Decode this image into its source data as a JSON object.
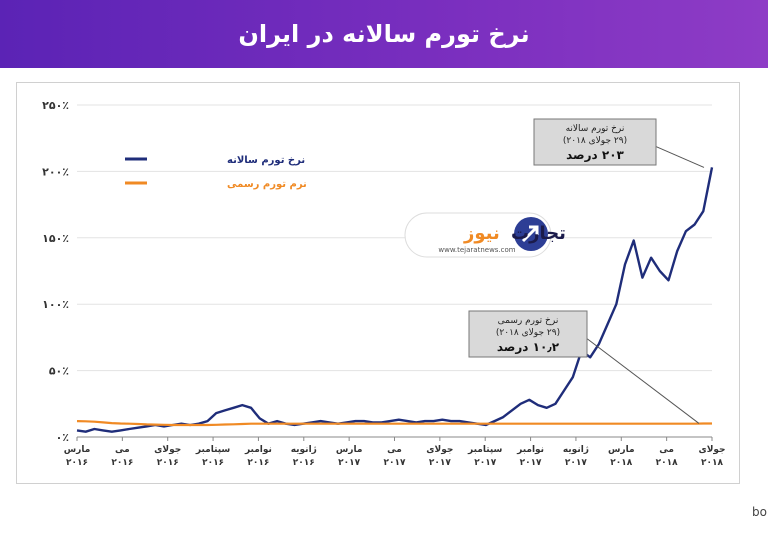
{
  "header": {
    "title": "نرخ تورم سالانه در ایران"
  },
  "logo": {
    "brand_black": "تجارت",
    "brand_orange": "نیوز",
    "url": "www.tejaratnews.com"
  },
  "source_note": "منابع: بانک مرکزی ایران، اداره آمار نیروی کار امریکا، bonbast.com",
  "colors": {
    "annual": "#1f2d7a",
    "official": "#f08a24",
    "header": "#6a2bbd"
  },
  "chart_data": {
    "type": "line",
    "ylim": [
      0,
      250
    ],
    "y_ticks": [
      "۰٪",
      "۵۰٪",
      "۱۰۰٪",
      "۱۵۰٪",
      "۲۰۰٪",
      "۲۵۰٪"
    ],
    "x_ticks": [
      {
        "m": "مارس",
        "y": "۲۰۱۶"
      },
      {
        "m": "می",
        "y": "۲۰۱۶"
      },
      {
        "m": "جولای",
        "y": "۲۰۱۶"
      },
      {
        "m": "سپتامبر",
        "y": "۲۰۱۶"
      },
      {
        "m": "نوامبر",
        "y": "۲۰۱۶"
      },
      {
        "m": "ژانویه",
        "y": "۲۰۱۶"
      },
      {
        "m": "مارس",
        "y": "۲۰۱۷"
      },
      {
        "m": "می",
        "y": "۲۰۱۷"
      },
      {
        "m": "جولای",
        "y": "۲۰۱۷"
      },
      {
        "m": "سپتامبر",
        "y": "۲۰۱۷"
      },
      {
        "m": "نوامبر",
        "y": "۲۰۱۷"
      },
      {
        "m": "ژانویه",
        "y": "۲۰۱۷"
      },
      {
        "m": "مارس",
        "y": "۲۰۱۸"
      },
      {
        "m": "می",
        "y": "۲۰۱۸"
      },
      {
        "m": "جولای",
        "y": "۲۰۱۸"
      }
    ],
    "legend": [
      {
        "label": "نرخ تورم سالانه",
        "color": "#1f2d7a"
      },
      {
        "label": "نرم تورم رسمی",
        "color": "#f08a24"
      }
    ],
    "series": [
      {
        "name": "نرخ تورم سالانه",
        "values": [
          5,
          4,
          6,
          5,
          4,
          5,
          6,
          7,
          8,
          9,
          8,
          9,
          10,
          9,
          10,
          12,
          18,
          20,
          22,
          24,
          22,
          14,
          10,
          12,
          10,
          9,
          10,
          11,
          12,
          11,
          10,
          11,
          12,
          12,
          11,
          11,
          12,
          13,
          12,
          11,
          12,
          12,
          13,
          12,
          12,
          11,
          10,
          9,
          12,
          15,
          20,
          25,
          28,
          24,
          22,
          25,
          35,
          45,
          65,
          60,
          70,
          85,
          100,
          130,
          148,
          120,
          135,
          125,
          118,
          140,
          155,
          160,
          170,
          203
        ]
      },
      {
        "name": "نرم تورم رسمی",
        "values": [
          12,
          11.8,
          11.5,
          11,
          10.5,
          10.2,
          10,
          9.8,
          9.5,
          9.3,
          9.2,
          9,
          9,
          9,
          9,
          9,
          9.2,
          9.4,
          9.6,
          9.8,
          10,
          10,
          10,
          10,
          10,
          10,
          10,
          10,
          10,
          10,
          10,
          10,
          10,
          10,
          10,
          10,
          10,
          10,
          10,
          10,
          10,
          10,
          10,
          10,
          10,
          10,
          10,
          10,
          10,
          10,
          10,
          10,
          10,
          10,
          10,
          10,
          10,
          10,
          10,
          10,
          10,
          10,
          10,
          10,
          10,
          10,
          10,
          10,
          10,
          10,
          10,
          10,
          10.2,
          10.2
        ]
      }
    ],
    "annotations": [
      {
        "lines": [
          "نرخ تورم سالانه",
          "(۲۹ جولای ۲۰۱۸)"
        ],
        "value": "۲۰۳ درصد"
      },
      {
        "lines": [
          "نرخ تورم رسمی",
          "(۲۹ جولای ۲۰۱۸)"
        ],
        "value": "۱۰٫۲ درصد"
      }
    ]
  }
}
